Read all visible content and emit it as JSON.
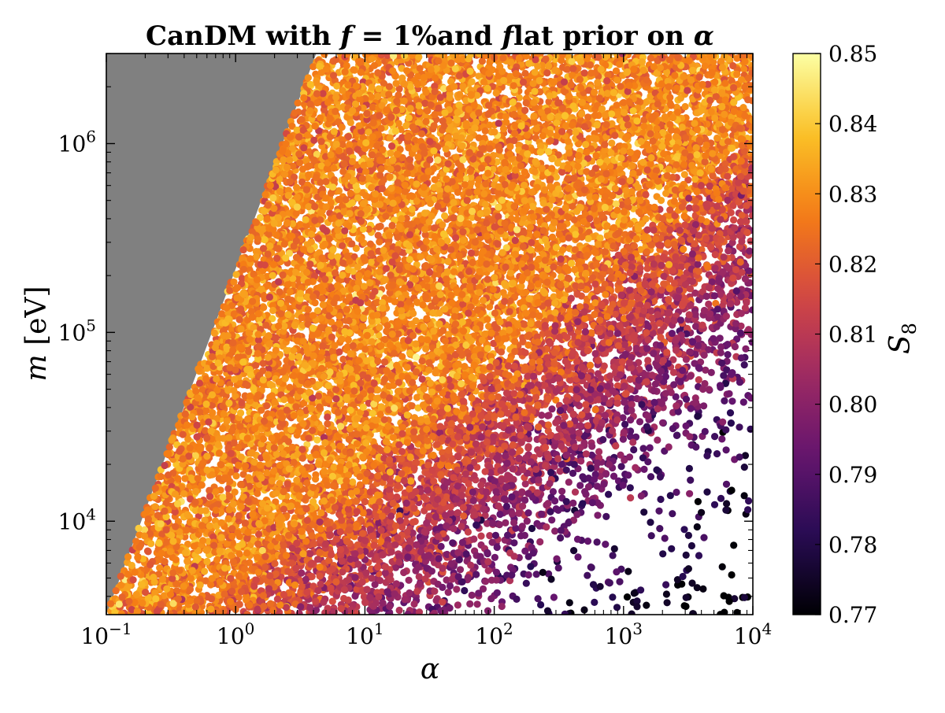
{
  "chart_data": {
    "type": "scatter",
    "title": "CanDM with f = 1%and flat prior on α",
    "xlabel": "α",
    "ylabel": "m [eV]",
    "xscale": "log",
    "yscale": "log",
    "xlim": [
      0.1,
      10000
    ],
    "ylim": [
      3200,
      3000000
    ],
    "x_tick_values": [
      0.1,
      1,
      10,
      100,
      1000,
      10000
    ],
    "x_tick_labels": [
      {
        "base": "10",
        "exp": "−1"
      },
      {
        "base": "10",
        "exp": "0"
      },
      {
        "base": "10",
        "exp": "1"
      },
      {
        "base": "10",
        "exp": "2"
      },
      {
        "base": "10",
        "exp": "3"
      },
      {
        "base": "10",
        "exp": "4"
      }
    ],
    "y_tick_values": [
      10000,
      100000,
      1000000
    ],
    "y_tick_labels": [
      {
        "base": "10",
        "exp": "4"
      },
      {
        "base": "10",
        "exp": "5"
      },
      {
        "base": "10",
        "exp": "6"
      }
    ],
    "excluded_region": {
      "color": "#808080",
      "boundary": [
        [
          0.1,
          3200
        ],
        [
          4.2,
          3000000
        ]
      ],
      "description_visible": false
    },
    "colorbar": {
      "label": "S8",
      "label_main": "S",
      "label_sub": "8",
      "colormap": "inferno",
      "range": [
        0.77,
        0.85
      ],
      "tick_values": [
        0.77,
        0.78,
        0.79,
        0.8,
        0.81,
        0.82,
        0.83,
        0.84,
        0.85
      ],
      "tick_labels": [
        "0.77",
        "0.78",
        "0.79",
        "0.80",
        "0.81",
        "0.82",
        "0.83",
        "0.84",
        "0.85"
      ]
    },
    "point_cloud": {
      "approx_count": 15000,
      "typical_value": 0.828,
      "region_upper_left": "S8 ≈ 0.82–0.84",
      "region_lower_right": "S8 ≈ 0.77–0.81, sparse"
    },
    "grid": false,
    "legend": "none"
  }
}
